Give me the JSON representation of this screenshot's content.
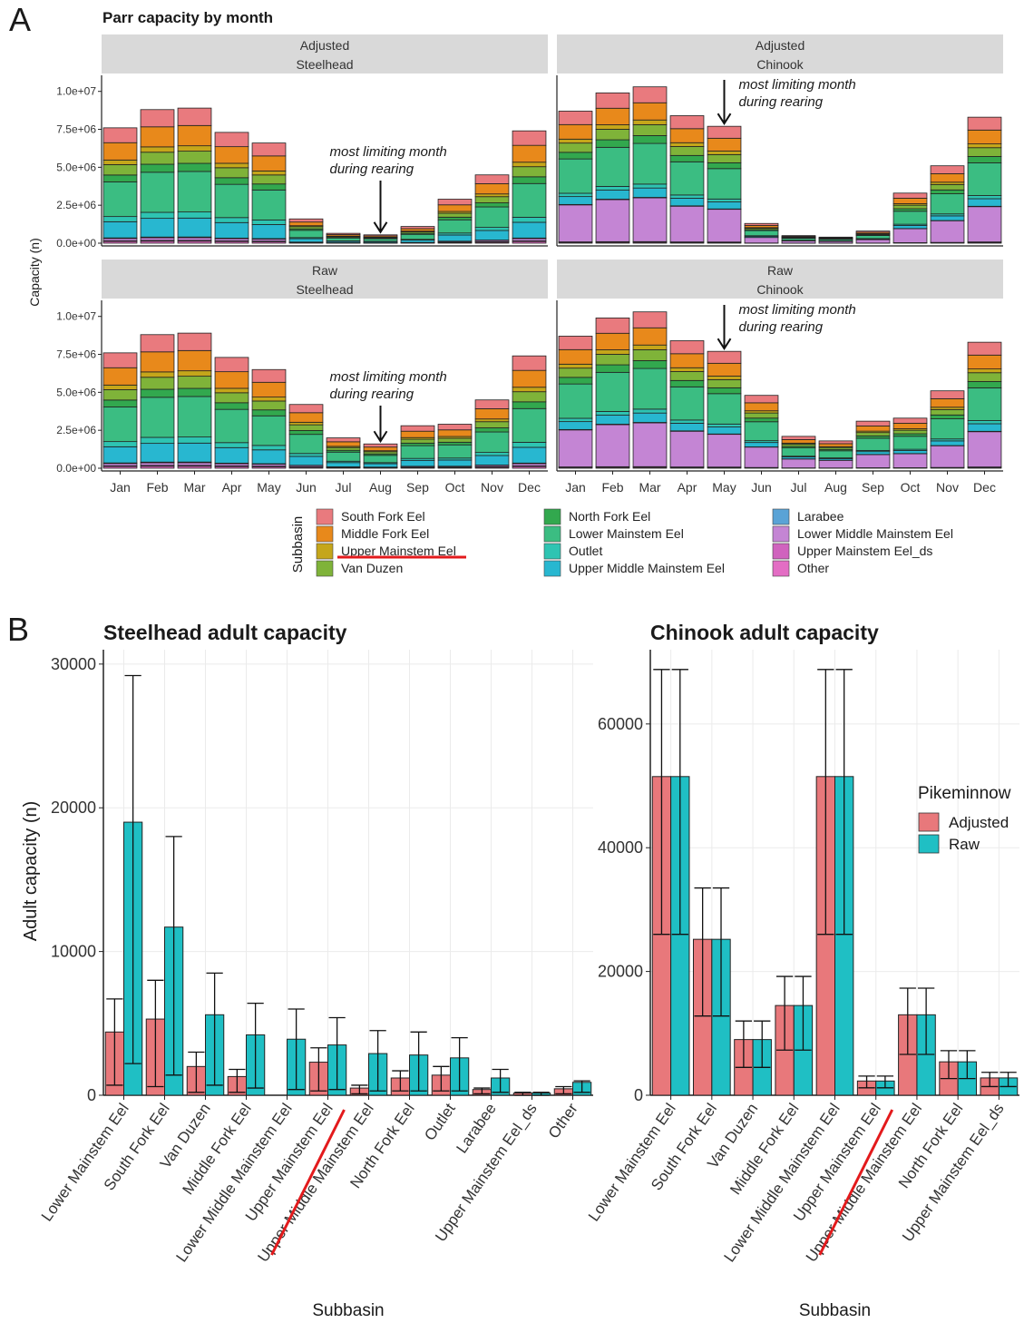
{
  "panel_labels": {
    "a": "A",
    "b": "B"
  },
  "parr": {
    "title": "Parr capacity by month",
    "ylabel": "Capacity (n)",
    "y_ticks": [
      "0.0e+00",
      "2.5e+06",
      "5.0e+06",
      "7.5e+06",
      "1.0e+07"
    ],
    "strip_top": "Adjusted",
    "strip_top_raw": "Raw",
    "species": {
      "steelhead": "Steelhead",
      "chinook": "Chinook"
    },
    "annotation": {
      "line1": "most limiting month",
      "line2": "during rearing"
    },
    "legend_title": "Subbasin"
  },
  "adult_steel_title": "Steelhead adult capacity",
  "adult_chin_title": "Chinook adult capacity",
  "adult_ylabel": "Adult capacity (n)",
  "adult_xlabel": "Subbasin",
  "adult_legend_title": "Pikeminnow",
  "colors": {
    "South Fork Eel": "#e97a7e",
    "Middle Fork Eel": "#e8891b",
    "Upper Mainstem Eel": "#c5a61a",
    "Van Duzen": "#7fb339",
    "North Fork Eel": "#32a84e",
    "Lower Mainstem Eel": "#3bbd82",
    "Outlet": "#2ec4b2",
    "Upper Middle Mainstem Eel": "#28b7d0",
    "Larabee": "#5aa3d6",
    "Lower Middle Mainstem Eel": "#c485d4",
    "Upper Mainstem Eel_ds": "#d063be",
    "Other": "#e36dc4",
    "adjusted": "#e8787b",
    "raw": "#1fbfc4",
    "strip": "#d9d9d9",
    "highlight": "#e31a1c"
  },
  "chart_data": [
    {
      "type": "bar",
      "stacked": true,
      "title": "Parr capacity by month",
      "facets": [
        {
          "strip": [
            "Adjusted",
            "Steelhead"
          ],
          "totals": [
            7600000,
            8800000,
            8900000,
            7300000,
            6600000,
            1600000,
            650000,
            550000,
            1100000,
            2900000,
            4500000,
            7400000
          ]
        },
        {
          "strip": [
            "Adjusted",
            "Chinook"
          ],
          "totals": [
            8700000,
            9900000,
            10300000,
            8400000,
            7700000,
            1300000,
            500000,
            400000,
            800000,
            3300000,
            5100000,
            8300000
          ]
        },
        {
          "strip": [
            "Raw",
            "Steelhead"
          ],
          "totals": [
            7600000,
            8800000,
            8900000,
            7300000,
            6500000,
            4200000,
            2000000,
            1600000,
            2800000,
            2900000,
            4500000,
            7400000
          ]
        },
        {
          "strip": [
            "Raw",
            "Chinook"
          ],
          "totals": [
            8700000,
            9900000,
            10300000,
            8400000,
            7700000,
            4800000,
            2100000,
            1800000,
            3100000,
            3300000,
            5100000,
            8300000
          ]
        }
      ],
      "categories": [
        "Jan",
        "Feb",
        "Mar",
        "Apr",
        "May",
        "Jun",
        "Jul",
        "Aug",
        "Sep",
        "Oct",
        "Nov",
        "Dec"
      ],
      "ylabel": "Capacity (n)",
      "ylim": [
        0,
        10000000
      ],
      "annotations": [
        "most limiting month",
        "during rearing"
      ],
      "legend_title": "Subbasin",
      "legend": [
        "South Fork Eel",
        "Middle Fork Eel",
        "Upper Mainstem Eel",
        "Van Duzen",
        "North Fork Eel",
        "Lower Mainstem Eel",
        "Outlet",
        "Upper Middle Mainstem Eel",
        "Larabee",
        "Lower Middle Mainstem Eel",
        "Upper Mainstem Eel_ds",
        "Other"
      ],
      "legend_placement": "bottom",
      "highlighted_legend_entry": "Upper Mainstem Eel"
    },
    {
      "type": "bar",
      "title": "Steelhead adult capacity",
      "xlabel": "Subbasin",
      "ylabel": "Adult capacity (n)",
      "ylim": [
        0,
        31000
      ],
      "y_ticks": [
        0,
        10000,
        20000,
        30000
      ],
      "categories": [
        "Lower Mainstem Eel",
        "South Fork Eel",
        "Van Duzen",
        "Middle Fork Eel",
        "Lower Middle Mainstem Eel",
        "Upper Mainstem Eel",
        "Upper Middle Mainstem Eel",
        "North Fork Eel",
        "Outlet",
        "Larabee",
        "Upper Mainstem Eel_ds",
        "Other"
      ],
      "series": [
        {
          "name": "Adjusted",
          "values": [
            4400,
            5300,
            2000,
            1300,
            0,
            2300,
            500,
            1200,
            1400,
            400,
            150,
            450
          ],
          "err_low": [
            700,
            600,
            200,
            200,
            0,
            300,
            100,
            300,
            300,
            100,
            0,
            100
          ],
          "err_high": [
            6700,
            8000,
            3000,
            1800,
            0,
            3300,
            700,
            1700,
            2000,
            500,
            200,
            600
          ]
        },
        {
          "name": "Raw",
          "values": [
            19000,
            11700,
            5600,
            4200,
            3900,
            3500,
            2900,
            2800,
            2600,
            1200,
            150,
            900
          ],
          "err_low": [
            2200,
            1400,
            700,
            500,
            400,
            400,
            300,
            300,
            300,
            200,
            0,
            200
          ],
          "err_high": [
            29200,
            18000,
            8500,
            6400,
            6000,
            5400,
            4500,
            4400,
            4000,
            1800,
            200,
            1000
          ]
        }
      ],
      "highlighted_category": "Upper Mainstem Eel",
      "legend_placement": "right"
    },
    {
      "type": "bar",
      "title": "Chinook adult capacity",
      "xlabel": "Subbasin",
      "ylim": [
        0,
        72000
      ],
      "y_ticks": [
        0,
        20000,
        40000,
        60000
      ],
      "categories": [
        "Lower Mainstem Eel",
        "South Fork Eel",
        "Van Duzen",
        "Middle Fork Eel",
        "Lower Middle Mainstem Eel",
        "Upper Mainstem Eel",
        "Upper Middle Mainstem Eel",
        "North Fork Eel",
        "Upper Mainstem Eel_ds"
      ],
      "series": [
        {
          "name": "Adjusted",
          "values": [
            51500,
            25200,
            9000,
            14500,
            51500,
            2300,
            13000,
            5400,
            2800
          ],
          "err_low": [
            26000,
            12800,
            4500,
            7300,
            26000,
            1200,
            6600,
            2700,
            1400
          ],
          "err_high": [
            68800,
            33500,
            12000,
            19200,
            68800,
            3100,
            17300,
            7200,
            3700
          ]
        },
        {
          "name": "Raw",
          "values": [
            51500,
            25200,
            9000,
            14500,
            51500,
            2300,
            13000,
            5400,
            2800
          ],
          "err_low": [
            26000,
            12800,
            4500,
            7300,
            26000,
            1200,
            6600,
            2700,
            1400
          ],
          "err_high": [
            68800,
            33500,
            12000,
            19200,
            68800,
            3100,
            17300,
            7200,
            3700
          ]
        }
      ],
      "legend_title": "Pikeminnow",
      "legend": [
        "Adjusted",
        "Raw"
      ],
      "legend_placement": "right",
      "highlighted_category": "Upper Mainstem Eel"
    }
  ]
}
